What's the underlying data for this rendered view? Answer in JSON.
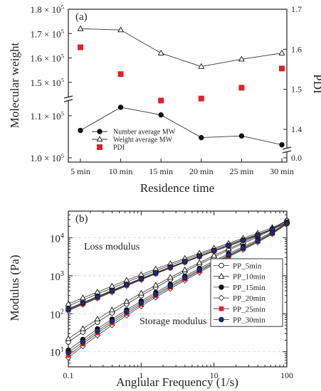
{
  "chart_data": [
    {
      "type": "scatter",
      "panel_label": "(a)",
      "xlabel": "Residence time",
      "ylabel_left": "Molecular weight",
      "ylabel_right": "PDI",
      "categories": [
        "5 min",
        "10 min",
        "15 min",
        "20 min",
        "25 min",
        "30 min"
      ],
      "left_axis_ticks": [
        {
          "label": "1.0 × 10",
          "sup": "5"
        },
        {
          "label": "1.1 × 10",
          "sup": "5"
        },
        {
          "label": "1.5 × 10",
          "sup": "5"
        },
        {
          "label": "1.6 × 10",
          "sup": "5"
        },
        {
          "label": "1.7 × 10",
          "sup": "5"
        },
        {
          "label": "1.8 × 10",
          "sup": "5"
        }
      ],
      "right_axis_ticks": [
        "0.0",
        "1.4",
        "1.5",
        "1.6",
        "1.7"
      ],
      "axis_break": true,
      "series": [
        {
          "name": "Number average MW",
          "axis": "left",
          "marker": "filled-circle",
          "values": [
            106500,
            112000,
            110200,
            104800,
            105200,
            103100
          ]
        },
        {
          "name": "Weight average MW",
          "axis": "left",
          "marker": "open-triangle",
          "values": [
            172000,
            171500,
            162000,
            156500,
            159500,
            162000
          ]
        },
        {
          "name": "PDI",
          "axis": "right",
          "marker": "filled-square",
          "color": "#e0202a",
          "values": [
            1.605,
            1.538,
            1.472,
            1.477,
            1.504,
            1.552
          ]
        }
      ]
    },
    {
      "type": "line",
      "panel_label": "(b)",
      "xlabel": "Anglular Frequency (1/s)",
      "ylabel": "Modulus (Pa)",
      "xscale": "log",
      "yscale": "log",
      "xlim": [
        0.1,
        100
      ],
      "ylim": [
        4,
        50000
      ],
      "x_ticks": [
        "0.1",
        "1",
        "10",
        "100"
      ],
      "y_ticks": [
        {
          "base": "10",
          "sup": "1"
        },
        {
          "base": "10",
          "sup": "2"
        },
        {
          "base": "10",
          "sup": "3"
        },
        {
          "base": "10",
          "sup": "4"
        }
      ],
      "annotations": [
        "Loss modulus",
        "Storage modulus"
      ],
      "x": [
        0.1,
        0.158,
        0.251,
        0.398,
        0.631,
        1.0,
        1.585,
        2.512,
        3.981,
        6.31,
        10.0,
        15.85,
        25.12,
        39.81,
        63.1,
        100.0
      ],
      "series": [
        {
          "name": "PP_5min",
          "marker": "open-circle",
          "loss": [
            160,
            230,
            330,
            470,
            680,
            960,
            1350,
            1880,
            2600,
            3600,
            4900,
            6600,
            9000,
            12200,
            17000,
            25000
          ],
          "storage": [
            18,
            33,
            60,
            105,
            180,
            300,
            490,
            800,
            1280,
            2000,
            3100,
            4700,
            7000,
            10500,
            16500,
            28000
          ]
        },
        {
          "name": "PP_10min",
          "marker": "open-triangle",
          "loss": [
            180,
            260,
            370,
            530,
            760,
            1070,
            1500,
            2080,
            2850,
            3900,
            5300,
            7100,
            9700,
            13200,
            18500,
            27000
          ],
          "storage": [
            22,
            40,
            72,
            125,
            210,
            345,
            560,
            900,
            1420,
            2200,
            3400,
            5100,
            7600,
            11300,
            17500,
            29000
          ]
        },
        {
          "name": "PP_15min",
          "marker": "filled-circle",
          "loss": [
            135,
            195,
            285,
            410,
            595,
            850,
            1210,
            1700,
            2380,
            3320,
            4580,
            6250,
            8600,
            11800,
            16600,
            25000
          ],
          "storage": [
            11,
            21,
            40,
            72,
            126,
            215,
            360,
            595,
            970,
            1550,
            2450,
            3800,
            5800,
            8900,
            14300,
            25000
          ]
        },
        {
          "name": "PP_20min",
          "marker": "open-diamond",
          "loss": [
            120,
            175,
            255,
            370,
            540,
            780,
            1120,
            1590,
            2240,
            3150,
            4380,
            6020,
            8350,
            11600,
            16500,
            25000
          ],
          "storage": [
            7,
            14,
            27,
            50,
            90,
            158,
            270,
            455,
            755,
            1230,
            1980,
            3120,
            4850,
            7600,
            12500,
            23000
          ]
        },
        {
          "name": "PP_25min",
          "marker": "filled-square",
          "color": "#e0202a",
          "loss": [
            125,
            182,
            265,
            385,
            560,
            805,
            1150,
            1630,
            2290,
            3210,
            4450,
            6100,
            8450,
            11700,
            16600,
            25000
          ],
          "storage": [
            8,
            16,
            31,
            57,
            101,
            175,
            298,
            500,
            820,
            1330,
            2120,
            3320,
            5120,
            7950,
            12900,
            23500
          ]
        },
        {
          "name": "PP_30min",
          "marker": "filled-circle",
          "color": "#1a2a8c",
          "loss": [
            130,
            190,
            275,
            398,
            578,
            830,
            1185,
            1670,
            2340,
            3270,
            4520,
            6180,
            8530,
            11800,
            16700,
            25000
          ],
          "storage": [
            9.5,
            18,
            35,
            64,
            113,
            193,
            325,
            540,
            880,
            1420,
            2250,
            3500,
            5380,
            8300,
            13500,
            24000
          ]
        }
      ]
    }
  ]
}
